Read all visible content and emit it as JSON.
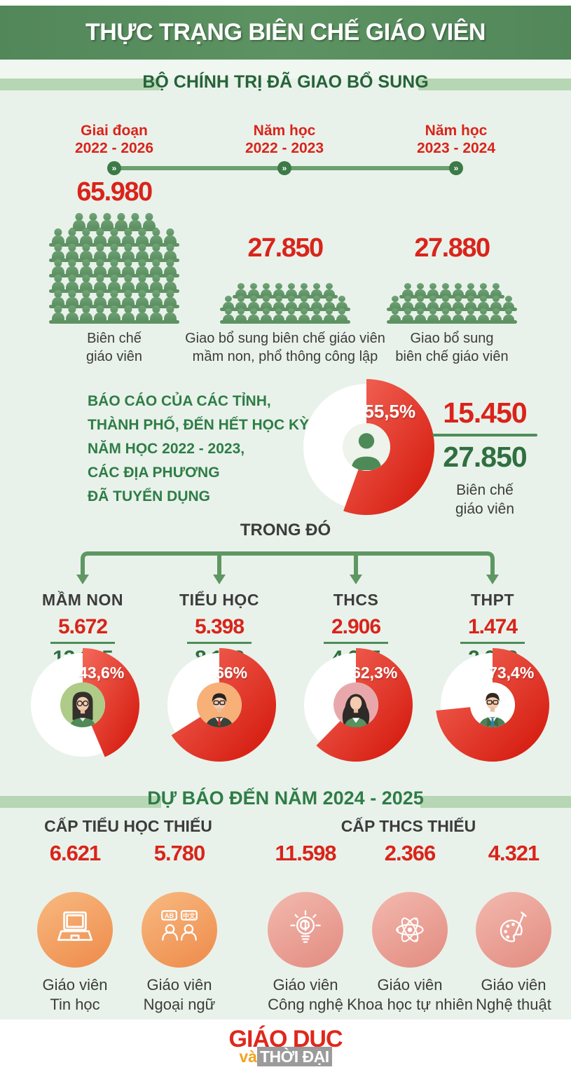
{
  "header": {
    "title": "THỰC TRẠNG BIÊN CHẾ GIÁO VIÊN"
  },
  "section_politburo": {
    "title": "BỘ CHÍNH TRỊ ĐÃ GIAO BỔ SUNG",
    "milestones": [
      {
        "line1": "Giai đoạn",
        "line2": "2022 - 2026"
      },
      {
        "line1": "Năm học",
        "line2": "2022 - 2023"
      },
      {
        "line1": "Năm học",
        "line2": "2023 - 2024"
      }
    ],
    "groups": [
      {
        "value": "65.980",
        "caption1": "Biên chế",
        "caption2": "giáo viên",
        "icon_rows": [
          6,
          9,
          9,
          9,
          9,
          9,
          9
        ]
      },
      {
        "value": "27.850",
        "caption1": "Giao bổ sung biên chế giáo viên",
        "caption2": "mầm non, phổ thông công lập",
        "icon_rows": [
          8,
          10,
          10
        ]
      },
      {
        "value": "27.880",
        "caption1": "Giao bổ sung",
        "caption2": "biên chế giáo viên",
        "icon_rows": [
          8,
          10,
          10
        ]
      }
    ]
  },
  "recruited": {
    "note_lines": [
      "BÁO CÁO CỦA CÁC TỈNH,",
      "THÀNH PHỐ, ĐẾN HẾT HỌC KỲ I,",
      "NĂM HỌC 2022 - 2023,",
      "CÁC ĐỊA PHƯƠNG",
      "ĐÃ TUYỂN DỤNG"
    ],
    "percent_label": "55,5%",
    "percent_value": 55.5,
    "numerator": "15.450",
    "denominator": "27.850",
    "caption1": "Biên chế",
    "caption2": "giáo viên"
  },
  "breakdown": {
    "title": "TRONG ĐÓ",
    "items": [
      {
        "label": "MẦM NON",
        "numerator": "5.672",
        "denominator": "13.015",
        "percent_label": "43,6%",
        "percent_value": 43.6,
        "avatar": "woman-glasses"
      },
      {
        "label": "TIỂU HỌC",
        "numerator": "5.398",
        "denominator": "8.162",
        "percent_label": "66%",
        "percent_value": 66,
        "avatar": "man-red-tie"
      },
      {
        "label": "THCS",
        "numerator": "2.906",
        "denominator": "4.665",
        "percent_label": "62,3%",
        "percent_value": 62.3,
        "avatar": "woman-long-hair"
      },
      {
        "label": "THPT",
        "numerator": "1.474",
        "denominator": "2.008",
        "percent_label": "73,4%",
        "percent_value": 73.4,
        "avatar": "man-blue-tie"
      }
    ]
  },
  "forecast": {
    "title": "DỰ BÁO ĐẾN NĂM 2024 - 2025",
    "group_headings": [
      "CẤP TIỂU HỌC THIẾU",
      "CẤP THCS THIẾU"
    ],
    "items": [
      {
        "value": "6.621",
        "label1": "Giáo viên",
        "label2": "Tin học",
        "icon": "laptop-icon",
        "theme": "orange"
      },
      {
        "value": "5.780",
        "label1": "Giáo viên",
        "label2": "Ngoại ngữ",
        "icon": "language-icon",
        "theme": "orange"
      },
      {
        "value": "11.598",
        "label1": "Giáo viên",
        "label2": "Công nghệ",
        "icon": "bulb-brain-icon",
        "theme": "pink"
      },
      {
        "value": "2.366",
        "label1": "Giáo viên",
        "label2": "Khoa học tự nhiên",
        "icon": "atom-icon",
        "theme": "pink"
      },
      {
        "value": "4.321",
        "label1": "Giáo viên",
        "label2": "Nghệ thuật",
        "icon": "palette-brush-icon",
        "theme": "pink"
      }
    ]
  },
  "footer": {
    "logo_top": "GIÁO DỤC",
    "logo_and": "và",
    "logo_bottom": "THỜI ĐẠI"
  },
  "colors": {
    "header_green": "#578d5c",
    "bar_light_green": "#b7d6b4",
    "heading_dark_green": "#256338",
    "note_green": "#2e7d46",
    "accent_red": "#d9241b",
    "donut_red_light": "#f4695a",
    "donut_red_dark": "#d21408",
    "pictogram_green": "#659a6a",
    "denominator_green": "#2f6f41",
    "text_dark": "#3c3c3c",
    "orange_circle": "#ee8a4a",
    "pink_circle": "#e28b80",
    "logo_red": "#e0271c",
    "logo_orange": "#f2a41f",
    "logo_gray": "#9b9b9b"
  },
  "chart_data": [
    {
      "type": "bar",
      "title": "BỘ CHÍNH TRỊ ĐÃ GIAO BỔ SUNG (pictogram)",
      "categories": [
        "Biên chế giáo viên (Giai đoạn 2022 - 2026)",
        "Giao bổ sung biên chế giáo viên mầm non, phổ thông công lập (Năm học 2022 - 2023)",
        "Giao bổ sung biên chế giáo viên (Năm học 2023 - 2024)"
      ],
      "values": [
        65980,
        27850,
        27880
      ]
    },
    {
      "type": "pie",
      "title": "Báo cáo của các tỉnh, thành phố, đến hết học kỳ I, năm học 2022 - 2023, các địa phương đã tuyển dụng",
      "labels": [
        "Đã tuyển dụng",
        "Còn lại"
      ],
      "values": [
        55.5,
        44.5
      ],
      "annotation": "15.450 / 27.850 Biên chế giáo viên"
    },
    {
      "type": "pie",
      "title": "MẦM NON",
      "labels": [
        "Đã tuyển dụng",
        "Còn lại"
      ],
      "values": [
        43.6,
        56.4
      ],
      "annotation": "5.672 / 13.015"
    },
    {
      "type": "pie",
      "title": "TIỂU HỌC",
      "labels": [
        "Đã tuyển dụng",
        "Còn lại"
      ],
      "values": [
        66,
        34
      ],
      "annotation": "5.398 / 8.162"
    },
    {
      "type": "pie",
      "title": "THCS",
      "labels": [
        "Đã tuyển dụng",
        "Còn lại"
      ],
      "values": [
        62.3,
        37.7
      ],
      "annotation": "2.906 / 4.665"
    },
    {
      "type": "pie",
      "title": "THPT",
      "labels": [
        "Đã tuyển dụng",
        "Còn lại"
      ],
      "values": [
        73.4,
        26.6
      ],
      "annotation": "1.474 / 2.008"
    },
    {
      "type": "bar",
      "title": "DỰ BÁO ĐẾN NĂM 2024 - 2025 (số giáo viên thiếu)",
      "categories": [
        "Tin học (Tiểu học)",
        "Ngoại ngữ (Tiểu học)",
        "Công nghệ (THCS)",
        "Khoa học tự nhiên (THCS)",
        "Nghệ thuật (THCS)"
      ],
      "values": [
        6621,
        5780,
        11598,
        2366,
        4321
      ]
    }
  ]
}
